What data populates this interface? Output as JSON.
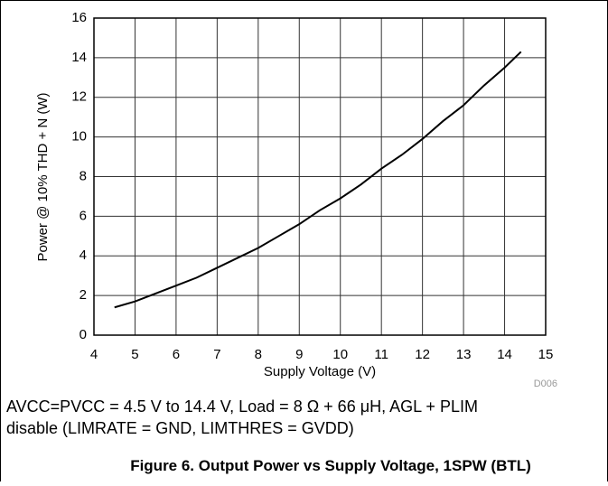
{
  "chart_data": {
    "type": "line",
    "xlabel": "Supply Voltage (V)",
    "ylabel": "Power @ 10% THD + N (W)",
    "code": "D006",
    "caption_lines": [
      "AVCC=PVCC = 4.5 V to 14.4 V, Load = 8 Ω + 66 μH, AGL + PLIM",
      "disable (LIMRATE = GND, LIMTHRES = GVDD)"
    ],
    "figure_title": "Figure 6. Output Power vs Supply Voltage, 1SPW (BTL)",
    "x": [
      4.5,
      5,
      5.5,
      6,
      6.5,
      7,
      7.5,
      8,
      8.5,
      9,
      9.5,
      10,
      10.5,
      11,
      11.5,
      12,
      12.5,
      13,
      13.5,
      14,
      14.4
    ],
    "series": [
      {
        "color": "#000000",
        "values": [
          1.4,
          1.7,
          2.1,
          2.5,
          2.9,
          3.4,
          3.9,
          4.4,
          5.0,
          5.6,
          6.3,
          6.9,
          7.6,
          8.4,
          9.1,
          9.9,
          10.8,
          11.6,
          12.6,
          13.5,
          14.3
        ]
      }
    ],
    "xlim": [
      4,
      15
    ],
    "xticks": [
      4,
      5,
      6,
      7,
      8,
      9,
      10,
      11,
      12,
      13,
      14,
      15
    ],
    "ylim": [
      0,
      16
    ],
    "yticks": [
      0,
      2,
      4,
      6,
      8,
      10,
      12,
      14,
      16
    ],
    "grid": true
  }
}
